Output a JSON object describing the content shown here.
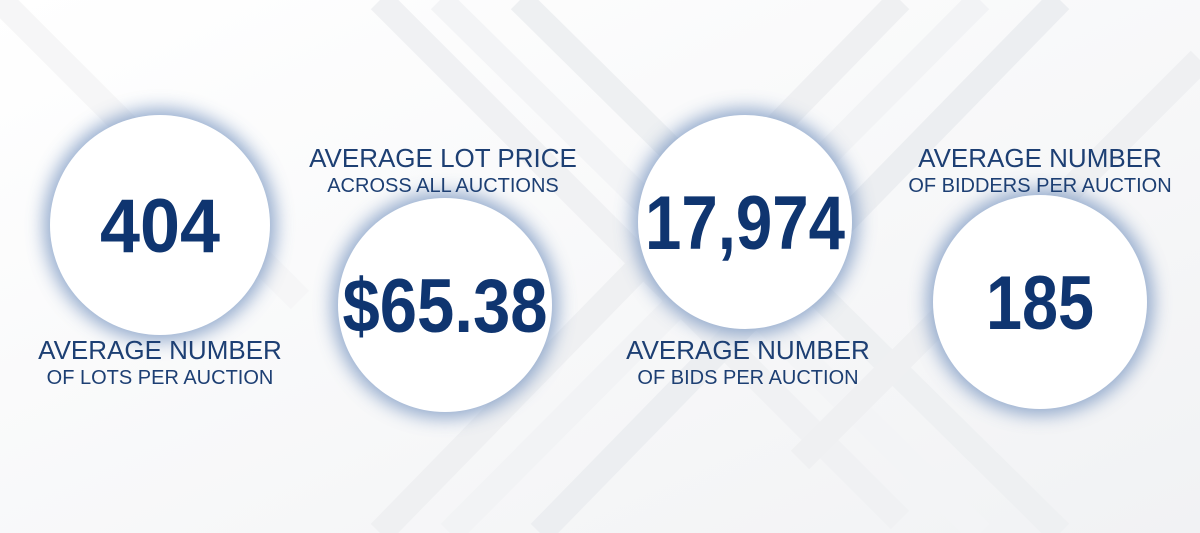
{
  "stats": [
    {
      "value": "404",
      "label": [
        "AVERAGE NUMBER",
        "OF LOTS PER AUCTION"
      ]
    },
    {
      "value": "$65.38",
      "label": [
        "AVERAGE LOT PRICE",
        "ACROSS ALL AUCTIONS"
      ]
    },
    {
      "value": "17,974",
      "label": [
        "AVERAGE NUMBER",
        "OF BIDS PER AUCTION"
      ]
    },
    {
      "value": "185",
      "label": [
        "AVERAGE NUMBER",
        "OF BIDDERS PER AUCTION"
      ]
    }
  ]
}
